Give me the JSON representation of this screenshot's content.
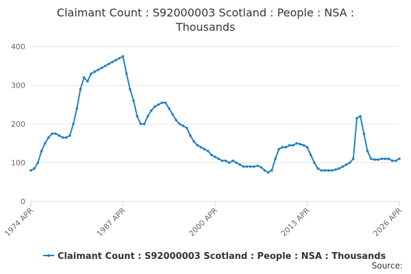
{
  "chart_data": {
    "type": "line",
    "title": "Claimant Count : S92000003 Scotland : People : NSA :",
    "subtitle": "Thousands",
    "source": "Source:",
    "series": [
      {
        "name": "Claimant Count : S92000003 Scotland : People : NSA : Thousands",
        "color": "#1f7fc0",
        "values": [
          80,
          85,
          100,
          130,
          150,
          165,
          175,
          175,
          170,
          165,
          165,
          170,
          200,
          240,
          290,
          320,
          310,
          330,
          335,
          340,
          345,
          350,
          355,
          360,
          365,
          370,
          375,
          330,
          290,
          260,
          220,
          200,
          200,
          220,
          235,
          245,
          250,
          255,
          255,
          240,
          225,
          210,
          200,
          195,
          190,
          170,
          155,
          145,
          140,
          135,
          130,
          120,
          115,
          110,
          105,
          105,
          100,
          105,
          100,
          95,
          90,
          90,
          90,
          90,
          92,
          88,
          80,
          75,
          80,
          110,
          135,
          140,
          140,
          145,
          145,
          150,
          148,
          145,
          140,
          120,
          100,
          85,
          80,
          80,
          80,
          80,
          82,
          85,
          90,
          95,
          100,
          110,
          215,
          220,
          175,
          130,
          110,
          108,
          108,
          110,
          110,
          110,
          105,
          105,
          110
        ]
      }
    ],
    "x": [
      1974.25,
      1974.75,
      1975.25,
      1975.75,
      1976.25,
      1976.75,
      1977.25,
      1977.75,
      1978.25,
      1978.75,
      1979.25,
      1979.75,
      1980.25,
      1980.75,
      1981.25,
      1981.75,
      1982.25,
      1982.75,
      1983.25,
      1983.75,
      1984.25,
      1984.75,
      1985.25,
      1985.75,
      1986.25,
      1986.75,
      1987.25,
      1987.75,
      1988.25,
      1988.75,
      1989.25,
      1989.75,
      1990.25,
      1990.75,
      1991.25,
      1991.75,
      1992.25,
      1992.75,
      1993.25,
      1993.75,
      1994.25,
      1994.75,
      1995.25,
      1995.75,
      1996.25,
      1996.75,
      1997.25,
      1997.75,
      1998.25,
      1998.75,
      1999.25,
      1999.75,
      2000.25,
      2000.75,
      2001.25,
      2001.75,
      2002.25,
      2002.75,
      2003.25,
      2003.75,
      2004.25,
      2004.75,
      2005.25,
      2005.75,
      2006.25,
      2006.75,
      2007.25,
      2007.75,
      2008.25,
      2008.75,
      2009.25,
      2009.75,
      2010.25,
      2010.75,
      2011.25,
      2011.75,
      2012.25,
      2012.75,
      2013.25,
      2013.75,
      2014.25,
      2014.75,
      2015.25,
      2015.75,
      2016.25,
      2016.75,
      2017.25,
      2017.75,
      2018.25,
      2018.75,
      2019.25,
      2019.75,
      2020.25,
      2020.75,
      2021.25,
      2021.75,
      2022.25,
      2022.75,
      2023.25,
      2023.75,
      2024.25,
      2024.75,
      2025.25,
      2025.75,
      2026.25
    ],
    "xlim": [
      1974.25,
      2026.25
    ],
    "xticks": [
      {
        "value": 1974.25,
        "label": "1974 APR"
      },
      {
        "value": 1987.25,
        "label": "1987 APR"
      },
      {
        "value": 2000.25,
        "label": "2000 APR"
      },
      {
        "value": 2013.25,
        "label": "2013 APR"
      },
      {
        "value": 2026.25,
        "label": "2026 APR"
      }
    ],
    "ylim": [
      0,
      400
    ],
    "yticks": [
      0,
      100,
      200,
      300,
      400
    ],
    "grid": true
  }
}
